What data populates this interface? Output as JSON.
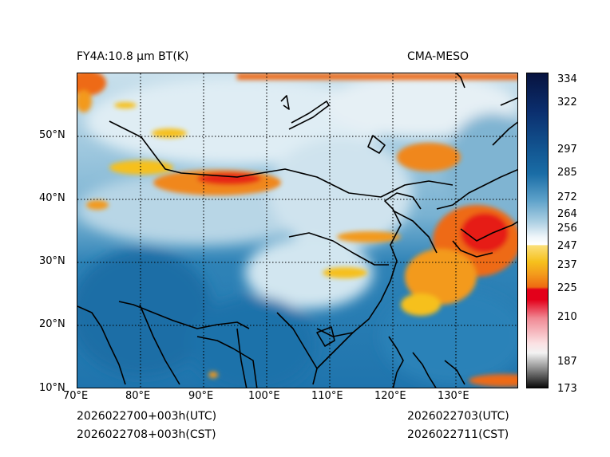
{
  "header": {
    "product_title": "FY4A:10.8 µm BT(K)",
    "source": "CMA-MESO"
  },
  "footer": {
    "init_utc": "2026022700+003h(UTC)",
    "init_cst": "2026022708+003h(CST)",
    "valid_utc": "2026022703(UTC)",
    "valid_cst": "2026022711(CST)"
  },
  "map": {
    "lon_ticks": [
      "70°E",
      "80°E",
      "90°E",
      "100°E",
      "110°E",
      "120°E",
      "130°E"
    ],
    "lat_ticks": [
      "10°N",
      "20°N",
      "30°N",
      "40°N",
      "50°N"
    ],
    "lon_range": [
      70,
      140
    ],
    "lat_range": [
      10,
      60
    ]
  },
  "colorbar": {
    "ticks": [
      "334",
      "322",
      "297",
      "285",
      "272",
      "264",
      "256",
      "247",
      "237",
      "225",
      "210",
      "187",
      "173"
    ],
    "colors": {
      "warm_top": "#08164a",
      "mid_blue": "#1a6da6",
      "light": "#dbeaf2",
      "yellow": "#f6c01c",
      "orange": "#ee6a12",
      "red": "#e3001a",
      "pink": "#f6c8cc",
      "gray": "#8c8c8c"
    }
  }
}
